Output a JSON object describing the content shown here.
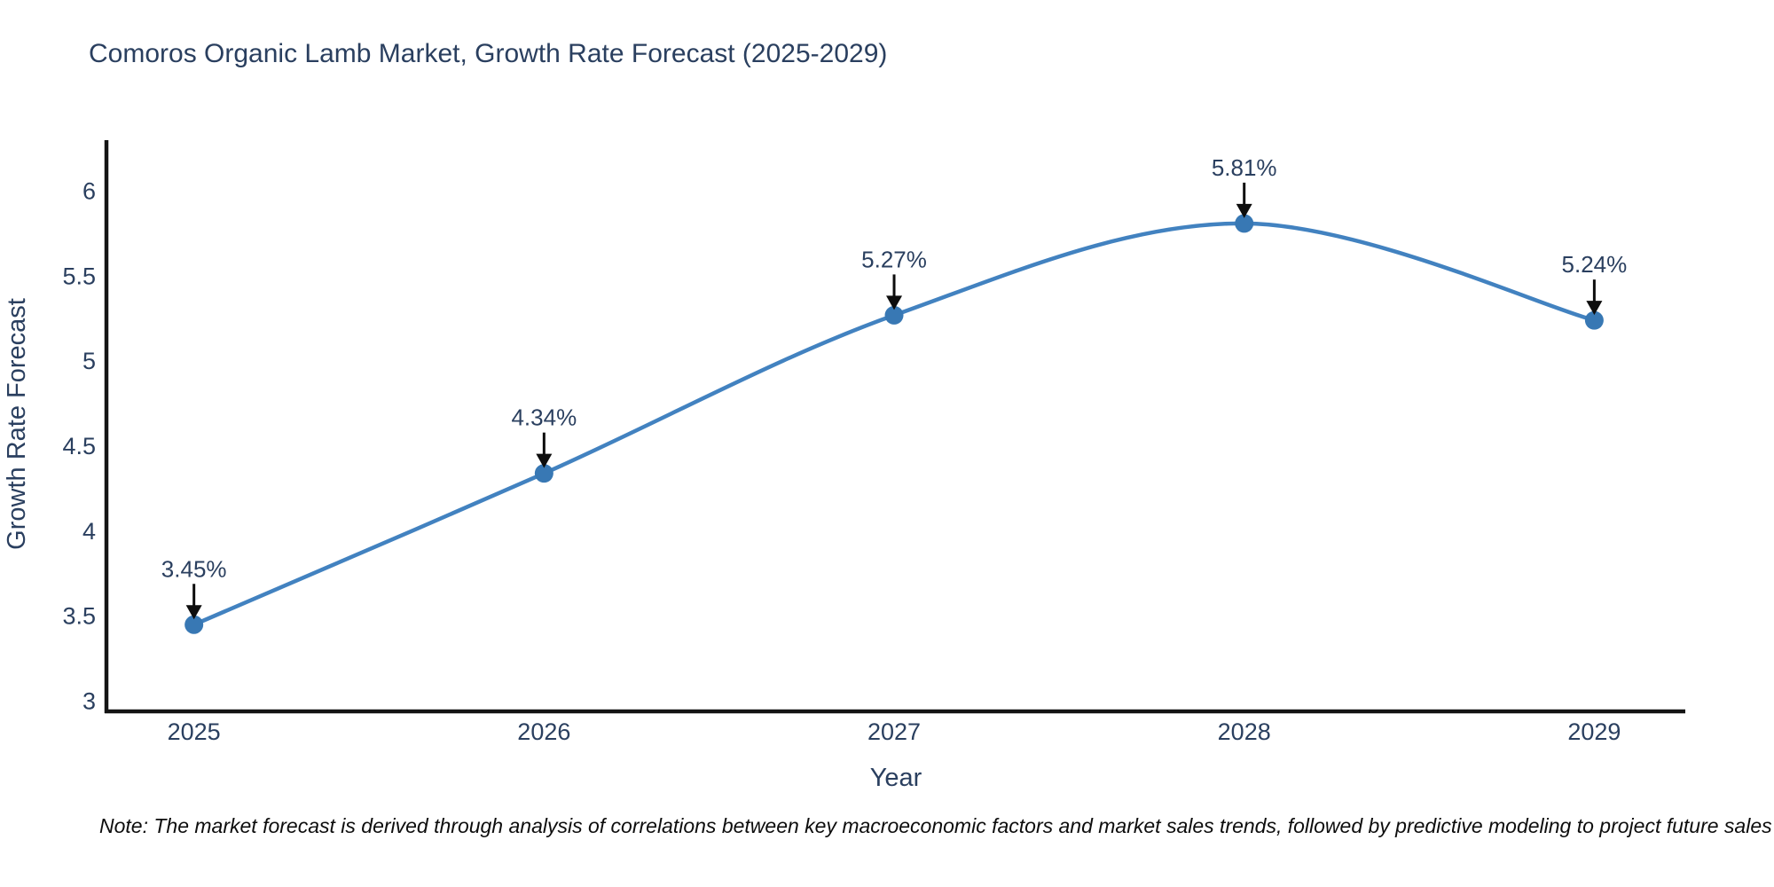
{
  "title": "Comoros Organic Lamb Market, Growth Rate Forecast (2025-2029)",
  "note": "Note: The market forecast is derived through analysis of correlations between key macroeconomic factors and market sales trends, followed by predictive modeling to project future sales",
  "chart_data": {
    "type": "line",
    "title": "Comoros Organic Lamb Market, Growth Rate Forecast (2025-2029)",
    "xlabel": "Year",
    "ylabel": "Growth Rate Forecast",
    "x": [
      2025,
      2026,
      2027,
      2028,
      2029
    ],
    "series": [
      {
        "name": "Growth Rate Forecast",
        "values": [
          3.45,
          4.34,
          5.27,
          5.81,
          5.24
        ]
      }
    ],
    "point_labels": [
      "3.45%",
      "4.34%",
      "5.27%",
      "5.81%",
      "5.24%"
    ],
    "x_tick_labels": [
      "2025",
      "2026",
      "2027",
      "2028",
      "2029"
    ],
    "y_tick_labels": [
      "3",
      "3.5",
      "4",
      "4.5",
      "5",
      "5.5",
      "6"
    ],
    "y_tick_values": [
      3,
      3.5,
      4,
      4.5,
      5,
      5.5,
      6
    ],
    "xlim": [
      2024.75,
      2029.26
    ],
    "ylim": [
      2.94,
      6.3
    ],
    "grid": false,
    "legend": "none",
    "line_shape": "spline",
    "colors": {
      "line": "#4282c0",
      "marker": "#3878b4",
      "axis": "#141414",
      "tick_text": "#2a3f5f",
      "annotation_text": "#2a3f5f",
      "arrow": "#0d0d0d"
    }
  }
}
